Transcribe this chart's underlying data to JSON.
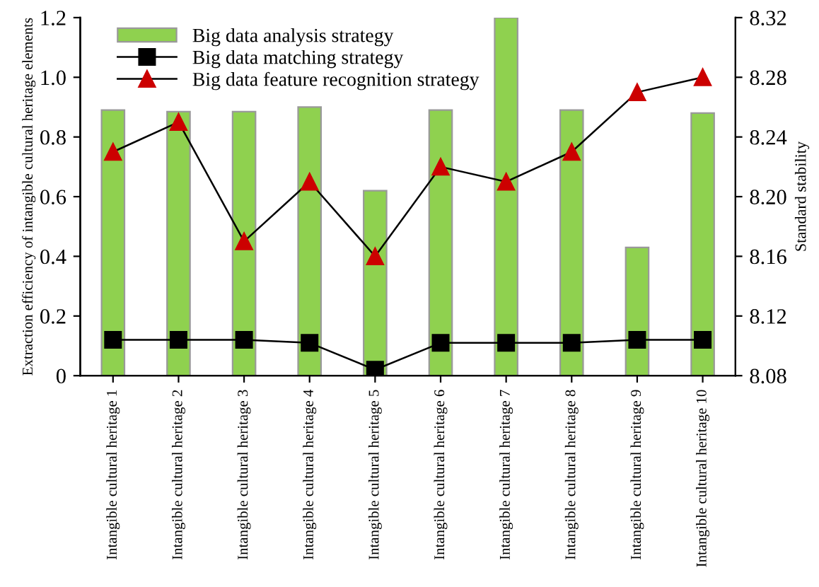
{
  "chart_data": {
    "type": "bar",
    "categories": [
      "Intangible cultural heritage 1",
      "Intangible cultural heritage 2",
      "Intangible cultural heritage 3",
      "Intangible cultural heritage 4",
      "Intangible cultural heritage 5",
      "Intangible cultural heritage 6",
      "Intangible cultural heritage 7",
      "Intangible cultural heritage 8",
      "Intangible cultural heritage 9",
      "Intangible cultural heritage 10"
    ],
    "ylabel": "Extraction efficiency of intangible cultural heritage elements",
    "y2label": "Standard stability",
    "ylim": [
      0,
      1.2
    ],
    "yticks": [
      0,
      0.2,
      0.4,
      0.6,
      0.8,
      {
        "value": 1,
        "label": "1.0"
      },
      1.2
    ],
    "y2lim": [
      8.08,
      8.32
    ],
    "y2ticks": [
      8.08,
      8.12,
      8.16,
      {
        "value": 8.2,
        "label": "8.20"
      },
      8.24,
      8.28,
      8.32
    ],
    "legend": "top left",
    "grid": false,
    "series": [
      {
        "name": "Big data analysis strategy",
        "color": "#8fd14f",
        "values": [
          0.89,
          0.885,
          0.885,
          0.9,
          0.62,
          0.89,
          1.2,
          0.89,
          0.43,
          0.88
        ]
      },
      {
        "name": "Big data matching strategy",
        "type": "line",
        "color": "#000000",
        "marker": "square",
        "values": [
          0.12,
          0.12,
          0.12,
          0.11,
          0.02,
          0.11,
          0.11,
          0.11,
          0.12,
          0.12
        ]
      },
      {
        "name": "Big data feature recognition strategy",
        "type": "line",
        "color": "#cc0000",
        "marker": "triangle",
        "axis": "y2",
        "values": [
          8.23,
          8.25,
          8.17,
          8.21,
          8.16,
          8.22,
          8.21,
          8.23,
          8.27,
          8.28
        ]
      }
    ]
  }
}
